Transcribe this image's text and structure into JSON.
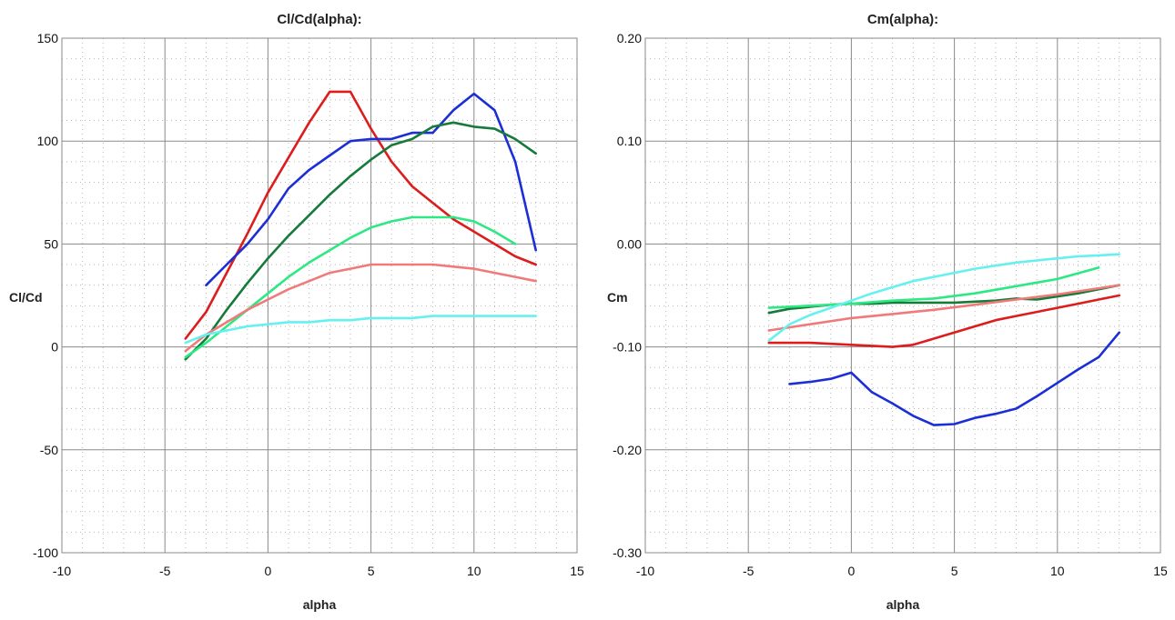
{
  "chart_data": [
    {
      "type": "line",
      "title": "Cl/Cd(alpha):",
      "xlabel": "alpha",
      "ylabel": "Cl/Cd",
      "xlim": [
        -10,
        15
      ],
      "ylim": [
        -100,
        150
      ],
      "xticks": [
        -10,
        -5,
        0,
        5,
        10,
        15
      ],
      "yticks": [
        -100,
        -50,
        0,
        50,
        100,
        150
      ],
      "xtick_labels": [
        "-10",
        "-5",
        "0",
        "5",
        "10",
        "15"
      ],
      "ytick_labels": [
        "-100",
        "-50",
        "0",
        "50",
        "100",
        "150"
      ],
      "grid": true,
      "series": [
        {
          "color": "#dd1c1c",
          "x": [
            -4,
            -3,
            -2,
            -1,
            0,
            1,
            2,
            3,
            4,
            5,
            6,
            7,
            8,
            9,
            10,
            11,
            12,
            13
          ],
          "y": [
            4,
            17,
            36,
            55,
            75,
            92,
            109,
            124,
            124,
            106,
            90,
            78,
            70,
            62,
            56,
            50,
            44,
            40
          ]
        },
        {
          "color": "#1c2ed6",
          "x": [
            -3,
            -2,
            -1,
            0,
            1,
            2,
            3,
            4,
            5,
            6,
            7,
            8,
            9,
            10,
            11,
            12,
            13
          ],
          "y": [
            30,
            40,
            50,
            62,
            77,
            86,
            93,
            100,
            101,
            101,
            104,
            104,
            115,
            123,
            115,
            90,
            47
          ]
        },
        {
          "color": "#157a3a",
          "x": [
            -4,
            -3,
            -2,
            -1,
            0,
            1,
            2,
            3,
            4,
            5,
            6,
            7,
            8,
            9,
            10,
            11,
            12,
            13
          ],
          "y": [
            -6,
            4,
            18,
            31,
            43,
            54,
            64,
            74,
            83,
            91,
            98,
            101,
            107,
            109,
            107,
            106,
            101,
            94
          ]
        },
        {
          "color": "#2ee883",
          "x": [
            -4,
            -3,
            -2,
            -1,
            0,
            1,
            2,
            3,
            4,
            5,
            6,
            7,
            8,
            9,
            10,
            11,
            12
          ],
          "y": [
            -5,
            2,
            10,
            18,
            26,
            34,
            41,
            47,
            53,
            58,
            61,
            63,
            63,
            63,
            61,
            56,
            50
          ]
        },
        {
          "color": "#f07a7a",
          "x": [
            -4,
            -3,
            -2,
            -1,
            0,
            1,
            2,
            3,
            4,
            5,
            6,
            7,
            8,
            9,
            10,
            11,
            12,
            13
          ],
          "y": [
            -2,
            6,
            12,
            18,
            23,
            28,
            32,
            36,
            38,
            40,
            40,
            40,
            40,
            39,
            38,
            36,
            34,
            32
          ]
        },
        {
          "color": "#66f0f0",
          "x": [
            -4,
            -3,
            -2,
            -1,
            0,
            1,
            2,
            3,
            4,
            5,
            6,
            7,
            8,
            9,
            10,
            11,
            12,
            13
          ],
          "y": [
            2,
            6,
            8,
            10,
            11,
            12,
            12,
            13,
            13,
            14,
            14,
            14,
            15,
            15,
            15,
            15,
            15,
            15
          ]
        }
      ]
    },
    {
      "type": "line",
      "title": "Cm(alpha):",
      "xlabel": "alpha",
      "ylabel": "Cm",
      "xlim": [
        -10,
        15
      ],
      "ylim": [
        -0.3,
        0.2
      ],
      "xticks": [
        -10,
        -5,
        0,
        5,
        10,
        15
      ],
      "yticks": [
        -0.3,
        -0.2,
        -0.1,
        0.0,
        0.1,
        0.2
      ],
      "xtick_labels": [
        "-10",
        "-5",
        "0",
        "5",
        "10",
        "15"
      ],
      "ytick_labels": [
        "-0.30",
        "-0.20",
        "-0.10",
        "0.00",
        "0.10",
        "0.20"
      ],
      "grid": true,
      "series": [
        {
          "color": "#dd1c1c",
          "x": [
            -4,
            -2,
            0,
            2,
            3,
            4,
            5,
            6,
            7,
            8,
            9,
            10,
            11,
            12,
            13
          ],
          "y": [
            -0.096,
            -0.096,
            -0.098,
            -0.1,
            -0.098,
            -0.092,
            -0.086,
            -0.08,
            -0.074,
            -0.07,
            -0.066,
            -0.062,
            -0.058,
            -0.054,
            -0.05
          ]
        },
        {
          "color": "#1c2ed6",
          "x": [
            -3,
            -2,
            -1,
            0,
            1,
            2,
            3,
            4,
            5,
            6,
            7,
            8,
            9,
            10,
            11,
            12,
            13
          ],
          "y": [
            -0.136,
            -0.134,
            -0.131,
            -0.125,
            -0.144,
            -0.155,
            -0.167,
            -0.176,
            -0.175,
            -0.169,
            -0.165,
            -0.16,
            -0.148,
            -0.135,
            -0.122,
            -0.11,
            -0.086
          ]
        },
        {
          "color": "#157a3a",
          "x": [
            -4,
            -3,
            -2,
            -1,
            0,
            1,
            2,
            3,
            4,
            5,
            6,
            7,
            8,
            9,
            10,
            11,
            12,
            13
          ],
          "y": [
            -0.067,
            -0.063,
            -0.061,
            -0.059,
            -0.058,
            -0.058,
            -0.057,
            -0.057,
            -0.057,
            -0.057,
            -0.056,
            -0.055,
            -0.053,
            -0.054,
            -0.051,
            -0.048,
            -0.044,
            -0.04
          ]
        },
        {
          "color": "#2ee883",
          "x": [
            -4,
            -2,
            0,
            2,
            4,
            6,
            8,
            10,
            12
          ],
          "y": [
            -0.062,
            -0.06,
            -0.058,
            -0.055,
            -0.053,
            -0.048,
            -0.041,
            -0.034,
            -0.023
          ]
        },
        {
          "color": "#f07a7a",
          "x": [
            -4,
            -2,
            0,
            2,
            4,
            6,
            8,
            10,
            12,
            13
          ],
          "y": [
            -0.084,
            -0.078,
            -0.072,
            -0.068,
            -0.064,
            -0.059,
            -0.054,
            -0.049,
            -0.043,
            -0.04
          ]
        },
        {
          "color": "#66f0f0",
          "x": [
            -4,
            -3,
            -2,
            -1,
            0,
            1,
            2,
            3,
            4,
            5,
            6,
            7,
            8,
            9,
            10,
            11,
            12,
            13
          ],
          "y": [
            -0.094,
            -0.078,
            -0.069,
            -0.062,
            -0.055,
            -0.048,
            -0.042,
            -0.036,
            -0.032,
            -0.028,
            -0.024,
            -0.021,
            -0.018,
            -0.016,
            -0.014,
            -0.012,
            -0.011,
            -0.01
          ]
        }
      ]
    }
  ]
}
